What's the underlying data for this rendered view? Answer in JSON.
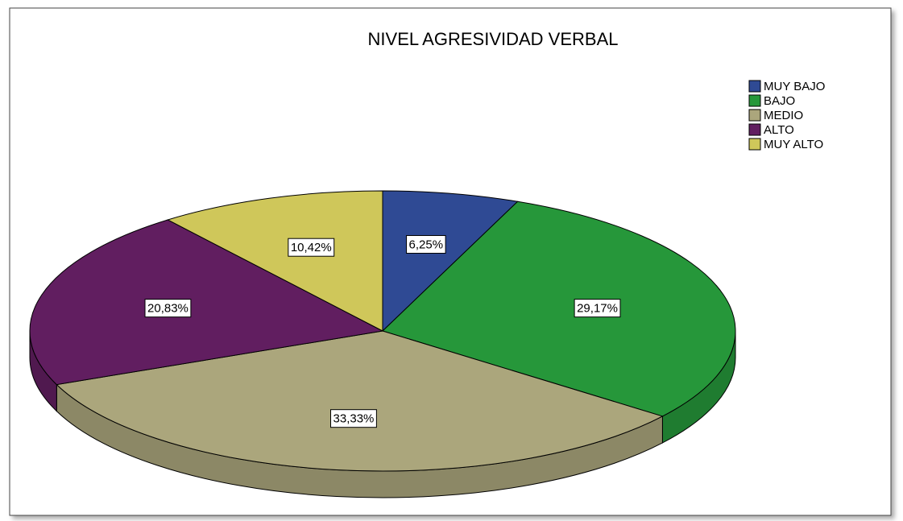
{
  "chart_data": {
    "type": "pie",
    "title": "NIVEL AGRESIVIDAD VERBAL",
    "categories": [
      "MUY BAJO",
      "BAJO",
      "MEDIO",
      "ALTO",
      "MUY ALTO"
    ],
    "values": [
      6.25,
      29.17,
      33.33,
      20.83,
      10.42
    ],
    "value_labels": [
      "6,25%",
      "29,17%",
      "33,33%",
      "20,83%",
      "10,42%"
    ],
    "colors": [
      "#2f4a94",
      "#26973a",
      "#aba67c",
      "#611e60",
      "#cfc75a"
    ],
    "legend": "top-right"
  }
}
